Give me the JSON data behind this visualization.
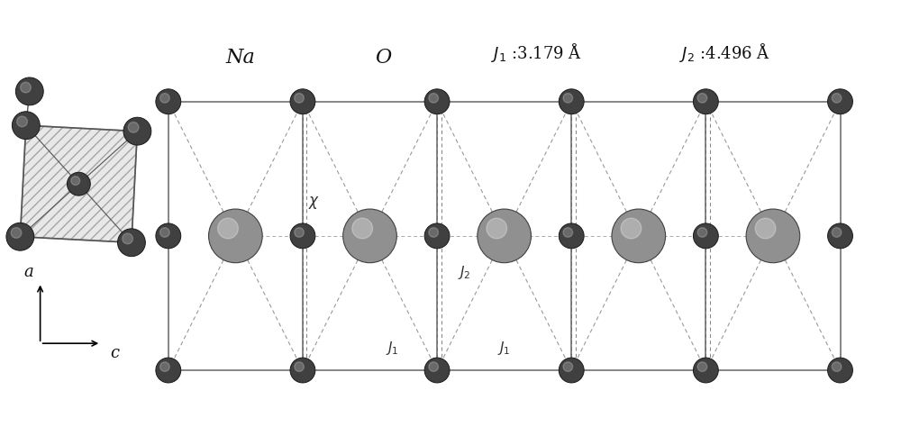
{
  "figsize": [
    10.0,
    4.85
  ],
  "dpi": 100,
  "background": "#ffffff",
  "Na_label": "Na",
  "O_label": "O",
  "J1_value": "3.179",
  "J2_value": "4.496",
  "axis_a_label": "a",
  "axis_c_label": "c",
  "small_atom_color": "#404040",
  "small_atom_edge": "#1a1a1a",
  "large_atom_color": "#909090",
  "large_atom_edge": "#404040",
  "bond_color": "#666666",
  "dashed_color": "#999999",
  "octahedron_fill": "#cccccc",
  "octahedron_alpha": 0.45,
  "small_r": 0.145,
  "large_r": 0.3
}
